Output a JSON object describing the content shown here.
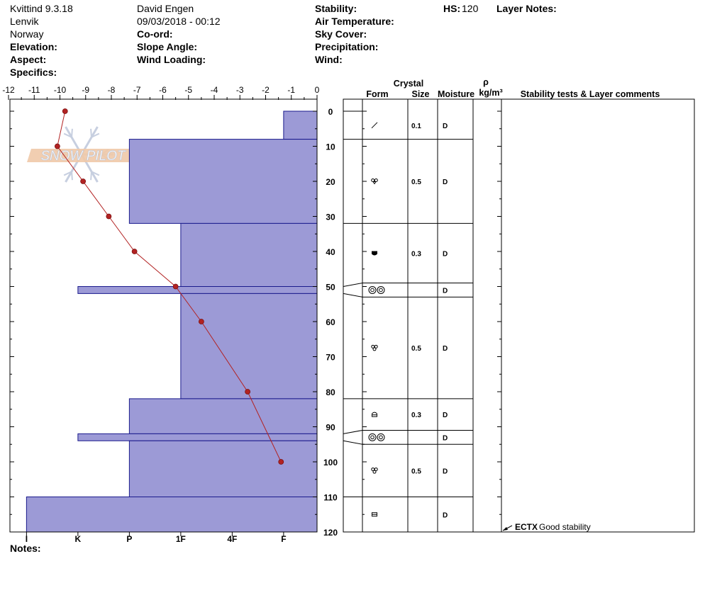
{
  "header": {
    "location": "Kvittind 9.3.18",
    "region": "Lenvik",
    "country": "Norway",
    "elevation_label": "Elevation:",
    "aspect_label": "Aspect:",
    "specifics_label": "Specifics:",
    "observer": "David Engen",
    "datetime": "09/03/2018 - 00:12",
    "coord_label": "Co-ord:",
    "slope_label": "Slope Angle:",
    "wind_loading_label": "Wind Loading:",
    "stability_label": "Stability:",
    "air_temp_label": "Air Temperature:",
    "sky_cover_label": "Sky Cover:",
    "precip_label": "Precipitation:",
    "wind_label": "Wind:",
    "hs_label": "HS:",
    "hs_value": "120",
    "layer_notes_label": "Layer Notes:",
    "notes_label": "Notes:"
  },
  "logo_text": "SNOW PILOT",
  "chart_data": {
    "type": "snow-profile",
    "depth_axis": {
      "range": [
        0,
        120
      ],
      "ticks": [
        "0",
        "10",
        "20",
        "30",
        "40",
        "50",
        "60",
        "70",
        "80",
        "90",
        "100",
        "110",
        "120"
      ]
    },
    "temperature_axis": {
      "range": [
        -12,
        0
      ],
      "ticks": [
        "-12",
        "-11",
        "-10",
        "-9",
        "-8",
        "-7",
        "-6",
        "-5",
        "-4",
        "-3",
        "-2",
        "-1",
        "0"
      ]
    },
    "hardness_axis": {
      "labels": [
        "I",
        "K",
        "P",
        "1F",
        "4F",
        "F"
      ],
      "values": [
        11.3,
        9.3,
        7.3,
        5.3,
        3.3,
        1.3
      ]
    },
    "temperature_profile": [
      {
        "depth": 0,
        "temp": -9.8
      },
      {
        "depth": 10,
        "temp": -10.1
      },
      {
        "depth": 20,
        "temp": -9.1
      },
      {
        "depth": 30,
        "temp": -8.1
      },
      {
        "depth": 40,
        "temp": -7.1
      },
      {
        "depth": 50,
        "temp": -5.5
      },
      {
        "depth": 60,
        "temp": -4.5
      },
      {
        "depth": 80,
        "temp": -2.7
      },
      {
        "depth": 100,
        "temp": -1.4
      }
    ],
    "hardness_layers": [
      {
        "top": 0,
        "bottom": 8,
        "hardness": 1.3
      },
      {
        "top": 8,
        "bottom": 32,
        "hardness": 7.3
      },
      {
        "top": 32,
        "bottom": 50,
        "hardness": 5.3
      },
      {
        "top": 50,
        "bottom": 52,
        "hardness": 9.3
      },
      {
        "top": 52,
        "bottom": 82,
        "hardness": 5.3
      },
      {
        "top": 82,
        "bottom": 92,
        "hardness": 7.3
      },
      {
        "top": 92,
        "bottom": 94,
        "hardness": 9.3
      },
      {
        "top": 94,
        "bottom": 110,
        "hardness": 7.3
      },
      {
        "top": 110,
        "bottom": 120,
        "hardness": 11.3
      }
    ],
    "layers": [
      {
        "top": 0,
        "bottom": 8,
        "form_icon": "precipitation-particles-icon",
        "size": "0.1",
        "moisture": "D"
      },
      {
        "top": 8,
        "bottom": 32,
        "form_icon": "rounded-faceted-icon",
        "size": "0.5",
        "moisture": "D"
      },
      {
        "top": 32,
        "bottom": 49,
        "form_icon": "depth-hoar-icon",
        "size": "0.3",
        "moisture": "D"
      },
      {
        "top": 49,
        "bottom": 53,
        "form_icon": "ice-crust-icon",
        "size": "",
        "moisture": "D"
      },
      {
        "top": 53,
        "bottom": 82,
        "form_icon": "rounded-grains-icon",
        "size": "0.5",
        "moisture": "D"
      },
      {
        "top": 82,
        "bottom": 91,
        "form_icon": "faceted-crystals-icon",
        "size": "0.3",
        "moisture": "D"
      },
      {
        "top": 91,
        "bottom": 95,
        "form_icon": "ice-crust-icon",
        "size": "",
        "moisture": "D"
      },
      {
        "top": 95,
        "bottom": 110,
        "form_icon": "rounded-grains-icon",
        "size": "0.5",
        "moisture": "D"
      },
      {
        "top": 110,
        "bottom": 120,
        "form_icon": "melt-form-icon",
        "size": "",
        "moisture": "D"
      }
    ],
    "table_headers": {
      "crystal": "Crystal",
      "form": "Form",
      "size": "Size",
      "moisture": "Moisture",
      "rho": "ρ",
      "density_unit": "kg/m³",
      "comments": "Stability tests & Layer comments"
    },
    "stability_tests": [
      {
        "depth": 120,
        "code": "ECTX",
        "comment": "Good stability"
      }
    ],
    "colors": {
      "hardness_fill": "#9c9ad6",
      "hardness_stroke": "#1a1a8c",
      "temperature_line": "#b22222"
    }
  }
}
